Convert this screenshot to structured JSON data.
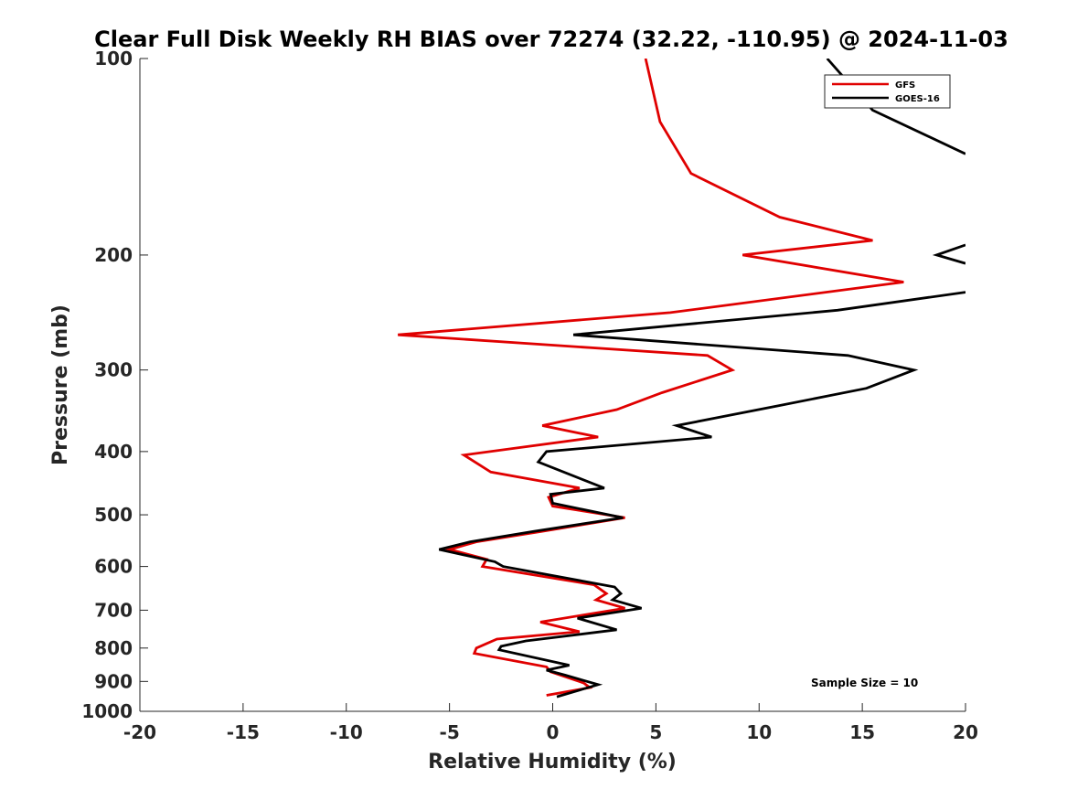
{
  "chart_data": {
    "type": "line",
    "title": "Clear Full Disk Weekly RH BIAS over 72274 (32.22, -110.95) @ 2024-11-03",
    "xlabel": "Relative Humidity (%)",
    "ylabel": "Pressure (mb)",
    "xlim": [
      -20,
      20
    ],
    "ylim": [
      100,
      1000
    ],
    "y_scale": "log",
    "y_reversed": true,
    "xticks": [
      -20,
      -15,
      -10,
      -5,
      0,
      5,
      10,
      15,
      20
    ],
    "yticks": [
      100,
      200,
      300,
      400,
      500,
      600,
      700,
      800,
      900,
      1000
    ],
    "grid": false,
    "legend_position": "top-right",
    "annotation": "Sample Size = 10",
    "series": [
      {
        "name": "GFS",
        "color": "#e00000",
        "points": [
          [
            4.5,
            100
          ],
          [
            5.2,
            125
          ],
          [
            6.7,
            150
          ],
          [
            11.0,
            175
          ],
          [
            15.5,
            190
          ],
          [
            9.2,
            200
          ],
          [
            17.0,
            220
          ],
          [
            5.7,
            245
          ],
          [
            -7.5,
            265
          ],
          [
            7.5,
            285
          ],
          [
            8.7,
            300
          ],
          [
            5.3,
            325
          ],
          [
            3.1,
            345
          ],
          [
            -0.5,
            365
          ],
          [
            2.2,
            380
          ],
          [
            -4.3,
            405
          ],
          [
            -3.0,
            430
          ],
          [
            1.3,
            455
          ],
          [
            -0.2,
            470
          ],
          [
            0.0,
            485
          ],
          [
            3.5,
            505
          ],
          [
            -0.5,
            530
          ],
          [
            -3.7,
            550
          ],
          [
            -5.0,
            565
          ],
          [
            -3.2,
            585
          ],
          [
            -3.4,
            600
          ],
          [
            2.0,
            640
          ],
          [
            2.6,
            660
          ],
          [
            2.1,
            675
          ],
          [
            3.5,
            695
          ],
          [
            -0.6,
            730
          ],
          [
            1.3,
            755
          ],
          [
            -2.7,
            775
          ],
          [
            -3.7,
            800
          ],
          [
            -3.8,
            815
          ],
          [
            -0.3,
            855
          ],
          [
            -0.1,
            870
          ],
          [
            1.5,
            905
          ],
          [
            1.8,
            920
          ],
          [
            -0.3,
            945
          ]
        ]
      },
      {
        "name": "GOES-16",
        "color": "#000000",
        "points": [
          [
            13.3,
            100
          ],
          [
            15.5,
            120
          ],
          [
            20.0,
            140
          ],
          [
            null,
            195
          ],
          [
            20.0,
            193
          ],
          [
            18.6,
            200
          ],
          [
            20.0,
            206
          ],
          [
            null,
            228
          ],
          [
            20.0,
            228
          ],
          [
            13.8,
            243
          ],
          [
            1.0,
            265
          ],
          [
            14.3,
            285
          ],
          [
            17.5,
            300
          ],
          [
            15.2,
            320
          ],
          [
            11.0,
            340
          ],
          [
            6.0,
            365
          ],
          [
            7.7,
            380
          ],
          [
            -0.3,
            400
          ],
          [
            -0.7,
            415
          ],
          [
            2.5,
            455
          ],
          [
            -0.1,
            465
          ],
          [
            0.0,
            480
          ],
          [
            3.4,
            505
          ],
          [
            -0.9,
            530
          ],
          [
            -4.0,
            550
          ],
          [
            -5.5,
            565
          ],
          [
            -2.8,
            590
          ],
          [
            -2.4,
            600
          ],
          [
            3.0,
            645
          ],
          [
            3.3,
            660
          ],
          [
            2.9,
            675
          ],
          [
            4.3,
            695
          ],
          [
            1.2,
            720
          ],
          [
            3.1,
            750
          ],
          [
            -1.3,
            780
          ],
          [
            -2.5,
            795
          ],
          [
            -2.6,
            805
          ],
          [
            0.8,
            850
          ],
          [
            -0.3,
            865
          ],
          [
            0.6,
            880
          ],
          [
            2.2,
            910
          ],
          [
            0.2,
            950
          ]
        ]
      }
    ]
  }
}
